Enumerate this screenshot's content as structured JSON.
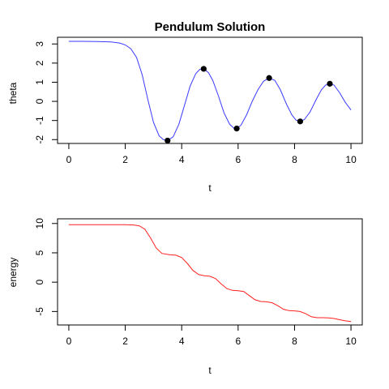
{
  "chart_data": [
    {
      "type": "line",
      "title": "Pendulum Solution",
      "xlabel": "t",
      "ylabel": "theta",
      "xlim": [
        -0.4,
        10.4
      ],
      "ylim": [
        -2.2,
        3.35
      ],
      "x_ticks": [
        0,
        2,
        4,
        6,
        8,
        10
      ],
      "y_ticks": [
        -2,
        -1,
        0,
        1,
        2,
        3
      ],
      "grid": false,
      "legend": "none",
      "series": [
        {
          "color": "#3a3aff",
          "x": [
            0,
            0.5,
            1,
            1.5,
            1.8,
            2.0,
            2.2,
            2.4,
            2.6,
            2.8,
            3.0,
            3.2,
            3.35,
            3.5,
            3.7,
            3.9,
            4.1,
            4.3,
            4.5,
            4.65,
            4.78,
            4.95,
            5.1,
            5.3,
            5.5,
            5.7,
            5.85,
            5.95,
            6.1,
            6.3,
            6.5,
            6.7,
            6.9,
            7.1,
            7.3,
            7.5,
            7.7,
            7.9,
            8.05,
            8.2,
            8.35,
            8.55,
            8.75,
            8.95,
            9.1,
            9.25,
            9.4,
            9.6,
            9.8,
            10.0
          ],
          "values": [
            3.14,
            3.14,
            3.13,
            3.11,
            3.05,
            2.95,
            2.75,
            2.3,
            1.4,
            0.1,
            -1.1,
            -1.8,
            -2.0,
            -2.05,
            -1.85,
            -1.2,
            -0.2,
            0.8,
            1.45,
            1.68,
            1.7,
            1.5,
            1.1,
            0.3,
            -0.6,
            -1.2,
            -1.4,
            -1.42,
            -1.25,
            -0.7,
            0.0,
            0.6,
            1.05,
            1.22,
            1.1,
            0.6,
            -0.1,
            -0.7,
            -0.98,
            -1.05,
            -0.95,
            -0.55,
            0.05,
            0.6,
            0.85,
            0.92,
            0.85,
            0.45,
            -0.05,
            -0.45
          ]
        }
      ],
      "points": {
        "color": "#000000",
        "x": [
          3.5,
          4.78,
          5.95,
          7.1,
          8.2,
          9.25
        ],
        "values": [
          -2.05,
          1.7,
          -1.42,
          1.22,
          -1.05,
          0.92
        ]
      }
    },
    {
      "type": "line",
      "title": "",
      "xlabel": "t",
      "ylabel": "energy",
      "xlim": [
        -0.4,
        10.4
      ],
      "ylim": [
        -7.3,
        10.8
      ],
      "x_ticks": [
        0,
        2,
        4,
        6,
        8,
        10
      ],
      "y_ticks": [
        -5,
        0,
        5,
        10
      ],
      "grid": false,
      "legend": "none",
      "series": [
        {
          "color": "#ff2020",
          "x": [
            0,
            0.5,
            1,
            1.5,
            2.0,
            2.3,
            2.5,
            2.7,
            2.9,
            3.1,
            3.3,
            3.6,
            3.8,
            4.0,
            4.2,
            4.4,
            4.6,
            4.8,
            5.0,
            5.2,
            5.4,
            5.6,
            5.8,
            6.0,
            6.2,
            6.4,
            6.6,
            6.8,
            7.0,
            7.2,
            7.4,
            7.6,
            7.8,
            8.0,
            8.2,
            8.4,
            8.6,
            8.8,
            9.0,
            9.2,
            9.4,
            9.6,
            9.8,
            10.0
          ],
          "values": [
            9.8,
            9.8,
            9.8,
            9.8,
            9.79,
            9.75,
            9.6,
            9.0,
            7.5,
            5.8,
            4.9,
            4.65,
            4.6,
            4.2,
            3.2,
            2.0,
            1.3,
            1.1,
            1.0,
            0.6,
            -0.3,
            -1.1,
            -1.4,
            -1.45,
            -1.6,
            -2.3,
            -3.0,
            -3.3,
            -3.35,
            -3.5,
            -4.0,
            -4.6,
            -4.85,
            -4.9,
            -5.0,
            -5.4,
            -5.9,
            -6.05,
            -6.05,
            -6.1,
            -6.2,
            -6.4,
            -6.6,
            -6.7
          ]
        }
      ]
    }
  ]
}
